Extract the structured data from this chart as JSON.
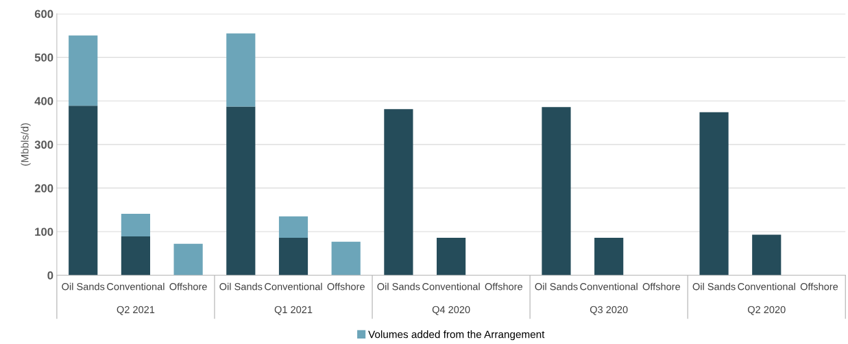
{
  "chart_data": {
    "type": "bar",
    "stacked": true,
    "ylabel": "(Mbbls/d)",
    "categories": [
      "Oil Sands",
      "Conventional",
      "Offshore",
      "Oil Sands",
      "Conventional",
      "Offshore",
      "Oil Sands",
      "Conventional",
      "Offshore",
      "Oil Sands",
      "Conventional",
      "Offshore",
      "Oil Sands",
      "Conventional",
      "Offshore"
    ],
    "series": [
      {
        "color": "#254c5a",
        "values": [
          389,
          89,
          0,
          387,
          86,
          0,
          381,
          86,
          0,
          386,
          86,
          0,
          374,
          93,
          0
        ]
      },
      {
        "name": "Volumes added from the Arrangement",
        "color": "#6ca5b9",
        "values": [
          161,
          52,
          72,
          168,
          49,
          77,
          null,
          null,
          null,
          null,
          null,
          null,
          null,
          null,
          null
        ]
      }
    ],
    "annotations": [
      "Q2 2021",
      "Q1 2021",
      "Q4 2020",
      "Q3 2020",
      "Q2 2020"
    ],
    "ylim": [
      0,
      600
    ],
    "yticks": [
      0,
      100,
      200,
      300,
      400,
      500,
      600
    ],
    "grid": "y",
    "legend": "bottom"
  }
}
